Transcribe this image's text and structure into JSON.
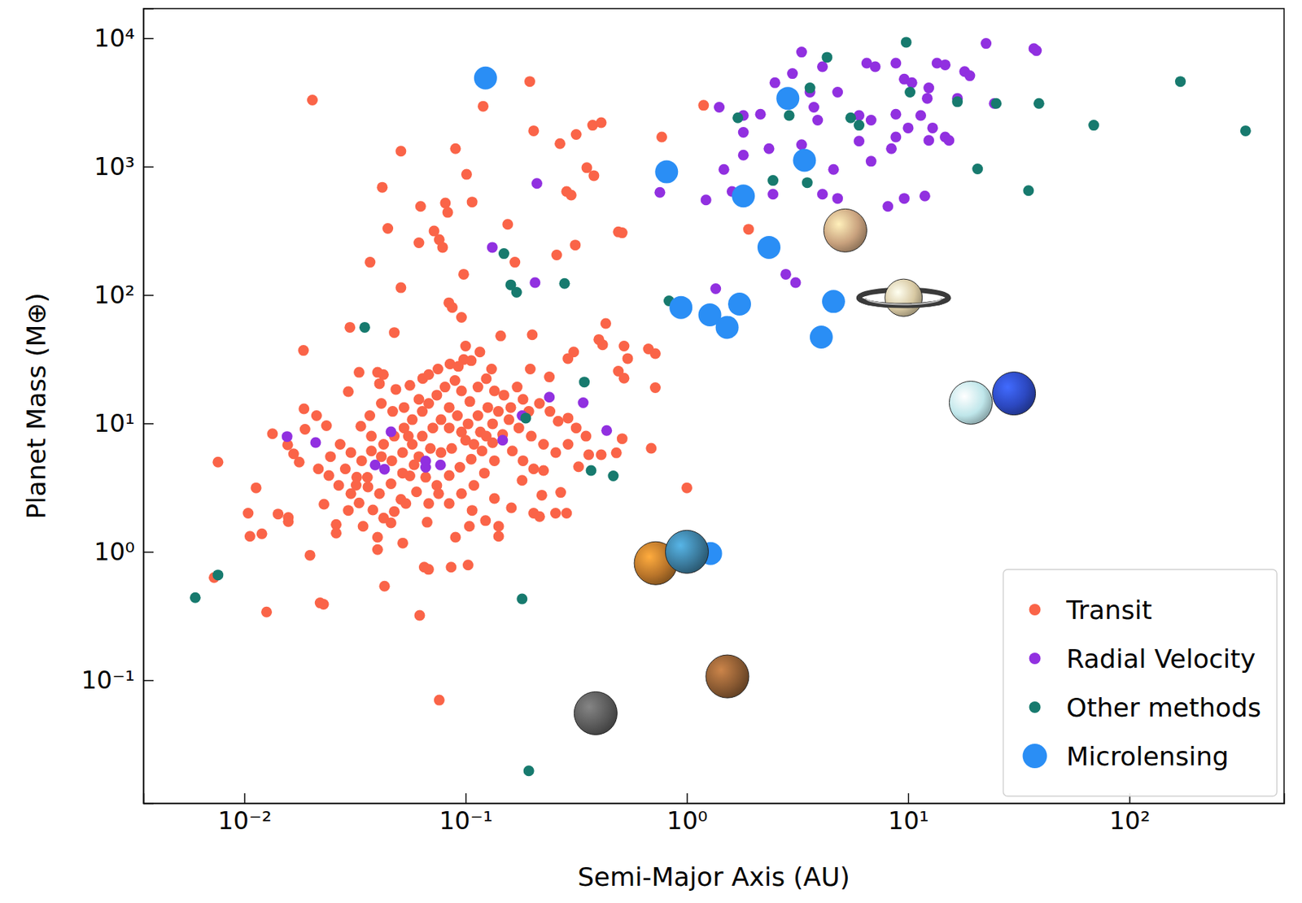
{
  "chart_data": {
    "type": "scatter",
    "x_label": "Semi-Major Axis (AU)",
    "y_label": "Planet Mass (M⊕)",
    "log": true,
    "grid": false,
    "legend": "lower right",
    "xlim": [
      0.0035,
      500
    ],
    "ylim": [
      0.011,
      17000
    ],
    "xticks": [
      {
        "value": 0.01,
        "label": "10⁻²"
      },
      {
        "value": 0.1,
        "label": "10⁻¹"
      },
      {
        "value": 1,
        "label": "10⁰"
      },
      {
        "value": 10,
        "label": "10¹"
      },
      {
        "value": 100,
        "label": "10²"
      }
    ],
    "yticks": [
      {
        "value": 0.1,
        "label": "10⁻¹"
      },
      {
        "value": 1,
        "label": "10⁰"
      },
      {
        "value": 10,
        "label": "10¹"
      },
      {
        "value": 100,
        "label": "10²"
      },
      {
        "value": 1000,
        "label": "10³"
      },
      {
        "value": 10000,
        "label": "10⁴"
      }
    ],
    "series": [
      {
        "name": "Transit",
        "color": "#fa6448",
        "marker": "circle",
        "x": [
          0.0203,
          0.195,
          0.12,
          0.203,
          0.051,
          0.09,
          0.267,
          0.316,
          0.375,
          0.41,
          0.353,
          0.38,
          0.101,
          0.042,
          0.107,
          0.0626,
          0.081,
          0.083,
          0.0445,
          0.072,
          0.076,
          0.0615,
          0.0787,
          0.155,
          0.286,
          0.3,
          0.49,
          0.51,
          0.77,
          1.19,
          1.9,
          0.313,
          0.258,
          0.167,
          0.098,
          0.037,
          0.051,
          0.03,
          0.0476,
          0.084,
          0.087,
          0.0958,
          0.416,
          0.52,
          0.43,
          0.54,
          0.308,
          0.29,
          0.4,
          0.49,
          0.52,
          0.67,
          0.72,
          0.72,
          0.69,
          1.0,
          0.144,
          0.1,
          0.098,
          0.116,
          0.2,
          0.196,
          0.239,
          0.131,
          0.085,
          0.075,
          0.064,
          0.0185,
          0.04,
          0.0425,
          0.033,
          0.0295,
          0.0408,
          0.0186,
          0.0212,
          0.0235,
          0.0188,
          0.0134,
          0.0157,
          0.0167,
          0.0177,
          0.0076,
          0.0113,
          0.0073,
          0.0104,
          0.0106,
          0.012,
          0.0126,
          0.0142,
          0.0158,
          0.0158,
          0.0198,
          0.022,
          0.0228,
          0.0229,
          0.026,
          0.026,
          0.0295,
          0.032,
          0.033,
          0.036,
          0.04,
          0.04,
          0.043,
          0.046,
          0.051,
          0.052,
          0.056,
          0.062,
          0.065,
          0.067,
          0.068,
          0.076,
          0.086,
          0.1026,
          0.09,
          0.104,
          0.107,
          0.123,
          0.135,
          0.141,
          0.141,
          0.18,
          0.161,
          0.203,
          0.216,
          0.255,
          0.286,
          0.221,
          0.225,
          0.269,
          0.324,
          0.36,
          0.41,
          0.48,
          0.51,
          0.0484,
          0.056,
          0.0615,
          0.0527,
          0.0468,
          0.0416,
          0.0369,
          0.0336,
          0.0375,
          0.0426,
          0.0476,
          0.0527,
          0.0574,
          0.0637,
          0.0681,
          0.0741,
          0.0807,
          0.0895,
          0.0958,
          0.1045,
          0.1137,
          0.124,
          0.135,
          0.149,
          0.16,
          0.171,
          0.1817,
          0.193,
          0.2156,
          0.2405,
          0.262,
          0.2904,
          0.316,
          0.35,
          0.2904,
          0.2555,
          0.225,
          0.198,
          0.174,
          0.157,
          0.1406,
          0.126,
          0.1137,
          0.1026,
          0.0918,
          0.0843,
          0.0774,
          0.0711,
          0.0637,
          0.0574,
          0.0519,
          0.0464,
          0.0416,
          0.0375,
          0.0339,
          0.0303,
          0.0271,
          0.0245,
          0.0286,
          0.0322,
          0.0362,
          0.0408,
          0.046,
          0.0519,
          0.0585,
          0.066,
          0.0741,
          0.0843,
          0.0942,
          0.106,
          0.1186,
          0.1324,
          0.147,
          0.1626,
          0.1817,
          0.203,
          0.135,
          0.1216,
          0.109,
          0.0958,
          0.0843,
          0.0755,
          0.0681,
          0.06,
          0.0537,
          0.0476,
          0.0426,
          0.0381,
          0.0344,
          0.0303,
          0.0267,
          0.0241,
          0.0216,
          0.0927,
          0.106,
          0.0681,
          0.1324,
          0.1166,
          0.1,
          0.0865,
          0.0774,
          0.0693,
          0.0615,
          0.0551,
          0.0843,
          0.0958,
          0.109,
          0.124
        ],
        "values": [
          3300,
          4600,
          2950,
          1900,
          1320,
          1380,
          1510,
          1780,
          2100,
          2200,
          980,
          850,
          870,
          690,
          530,
          490,
          520,
          440,
          330,
          315,
          270,
          255,
          235,
          355,
          640,
          600,
          310,
          305,
          1700,
          3000,
          325,
          245,
          205,
          180,
          145,
          180,
          114,
          56,
          51,
          87,
          80,
          67,
          41,
          40,
          60,
          32,
          36,
          32,
          45,
          25.5,
          22.5,
          38,
          35,
          19,
          6.4,
          3.15,
          48,
          40,
          31.4,
          36,
          49,
          26.5,
          23,
          26.5,
          29,
          26.5,
          22.4,
          37,
          25,
          24,
          25,
          17.7,
          20.4,
          13,
          11.5,
          9.6,
          9.0,
          8.3,
          6.8,
          5.8,
          5.0,
          5.0,
          3.15,
          0.63,
          2.0,
          1.32,
          1.38,
          0.34,
          1.97,
          1.85,
          1.72,
          0.94,
          0.4,
          0.39,
          2.35,
          1.63,
          1.4,
          2.1,
          3.3,
          2.4,
          3.8,
          1.3,
          1.04,
          0.54,
          1.68,
          2.56,
          1.17,
          3.9,
          0.32,
          0.76,
          1.7,
          0.73,
          0.07,
          0.76,
          0.79,
          1.3,
          1.58,
          2.1,
          1.75,
          2.6,
          1.32,
          1.58,
          3.6,
          2.2,
          2.0,
          1.88,
          2.0,
          2.0,
          2.76,
          4.3,
          2.9,
          4.6,
          5.7,
          5.7,
          5.9,
          7.6,
          18.4,
          19.8,
          15.4,
          13.3,
          12.4,
          14.3,
          11.5,
          9.5,
          7.96,
          6.87,
          7.96,
          9.22,
          10.7,
          12.4,
          14.3,
          16.6,
          19.2,
          21.6,
          17.9,
          14.8,
          19.2,
          22.3,
          17.9,
          16.6,
          13.3,
          19.2,
          15.4,
          12.4,
          14.3,
          12.4,
          10.4,
          11.0,
          9.22,
          7.96,
          6.87,
          5.93,
          6.87,
          7.96,
          9.22,
          10.7,
          12.4,
          13.3,
          11.5,
          9.93,
          11.5,
          13.3,
          10.7,
          9.22,
          7.96,
          6.87,
          5.93,
          5.12,
          5.51,
          6.1,
          5.12,
          5.93,
          6.87,
          5.51,
          4.42,
          3.81,
          3.2,
          2.84,
          3.39,
          4.1,
          4.76,
          3.81,
          3.29,
          3.93,
          4.55,
          5.27,
          6.1,
          7.08,
          8.2,
          6.1,
          5.12,
          4.42,
          5.12,
          4.1,
          3.29,
          2.84,
          2.38,
          2.84,
          2.38,
          2.93,
          2.38,
          2.06,
          1.83,
          2.12,
          1.58,
          2.84,
          3.29,
          3.93,
          4.42,
          27.8,
          30.8,
          24,
          9.93,
          8.57,
          7.4,
          6.38,
          5.93,
          6.38,
          5.51,
          7.96,
          9.22,
          8.57,
          6.87,
          7.96
        ]
      },
      {
        "name": "Radial Velocity",
        "color": "#9130e0",
        "marker": "circle",
        "x": [
          3.3,
          2.5,
          3.0,
          4.1,
          3.6,
          4.8,
          6.5,
          7.1,
          8.8,
          9.6,
          10.4,
          12.4,
          13.5,
          14.7,
          18,
          19,
          22.5,
          37,
          38,
          24.5,
          1.4,
          1.8,
          2.15,
          3.75,
          3.9,
          6.0,
          6.8,
          8.8,
          11.4,
          12.9,
          10,
          14.7,
          12.4,
          15.3,
          8.8,
          6.0,
          1.8,
          2.35,
          3.3,
          1.8,
          1.47,
          4.6,
          6.8,
          8.4,
          4.8,
          4.1,
          8.1,
          9.6,
          11.9,
          1.22,
          1.6,
          2.45,
          0.755,
          0.21,
          12.2,
          16.7,
          2.8,
          3.1,
          1.35,
          0.132,
          0.206,
          0.239,
          0.34,
          0.434,
          0.18,
          0.147,
          0.066,
          0.066,
          0.077,
          0.046,
          0.039,
          0.043,
          0.021,
          0.0156
        ],
        "values": [
          7800,
          4500,
          5300,
          6000,
          3800,
          3800,
          6400,
          6000,
          6400,
          4800,
          4500,
          4100,
          6400,
          6200,
          5500,
          5100,
          9100,
          8300,
          8000,
          3100,
          2900,
          2500,
          2560,
          2900,
          2300,
          2500,
          2300,
          2560,
          2500,
          2000,
          2000,
          1700,
          1600,
          1600,
          1700,
          1580,
          1850,
          1380,
          1480,
          1230,
          950,
          950,
          1100,
          1380,
          565,
          610,
          490,
          565,
          590,
          550,
          640,
          610,
          630,
          740,
          3400,
          3400,
          145,
          125,
          112,
          235,
          125,
          16,
          14.5,
          8.8,
          11.5,
          7.4,
          5.1,
          4.55,
          4.75,
          8.6,
          4.75,
          4.4,
          7.1,
          7.9
        ]
      },
      {
        "name": "Other methods",
        "color": "#177a6e",
        "marker": "circle",
        "x": [
          9.8,
          4.3,
          3.6,
          170,
          335,
          69,
          39,
          25,
          16.7,
          5.5,
          6.0,
          1.7,
          2.9,
          20.6,
          35,
          2.45,
          3.5,
          10.2,
          0.149,
          0.28,
          0.16,
          0.17,
          0.83,
          0.035,
          0.344,
          0.187,
          0.369,
          0.465,
          0.0076,
          0.006,
          0.18,
          0.193
        ],
        "values": [
          9300,
          7100,
          4100,
          4600,
          1900,
          2100,
          3100,
          3100,
          3200,
          2400,
          2100,
          2400,
          2500,
          960,
          650,
          780,
          750,
          3800,
          210,
          123,
          120,
          105,
          90,
          56,
          21,
          11,
          4.3,
          3.9,
          0.66,
          0.44,
          0.43,
          0.0197
        ]
      },
      {
        "name": "Microlensing",
        "color": "#2a8ef5",
        "marker": "large_circle",
        "x": [
          0.123,
          2.86,
          0.81,
          3.4,
          1.8,
          2.35,
          4.9,
          0.94,
          1.27,
          1.73,
          1.52,
          4.6,
          4.05,
          1.28
        ],
        "values": [
          4900,
          3400,
          910,
          1120,
          590,
          235,
          280,
          80,
          70,
          85,
          56,
          89,
          47,
          0.97
        ]
      },
      {
        "marker": "planet",
        "colors": [
          "#5a5a5a",
          "#b8742a",
          "#3b7a9c",
          "#8a5a32",
          "#c9a27e",
          "#bfe6ea",
          "#2c48c0"
        ],
        "x": [
          0.387,
          0.723,
          1.0,
          1.524,
          5.2,
          19.2,
          30.1
        ],
        "values": [
          0.0553,
          0.815,
          1.0,
          0.107,
          318,
          14.5,
          17.1
        ]
      },
      {
        "marker": "ringed_planet",
        "colors": [
          "#d8c9a3"
        ],
        "x": [
          9.54
        ],
        "values": [
          95.2
        ]
      }
    ]
  }
}
